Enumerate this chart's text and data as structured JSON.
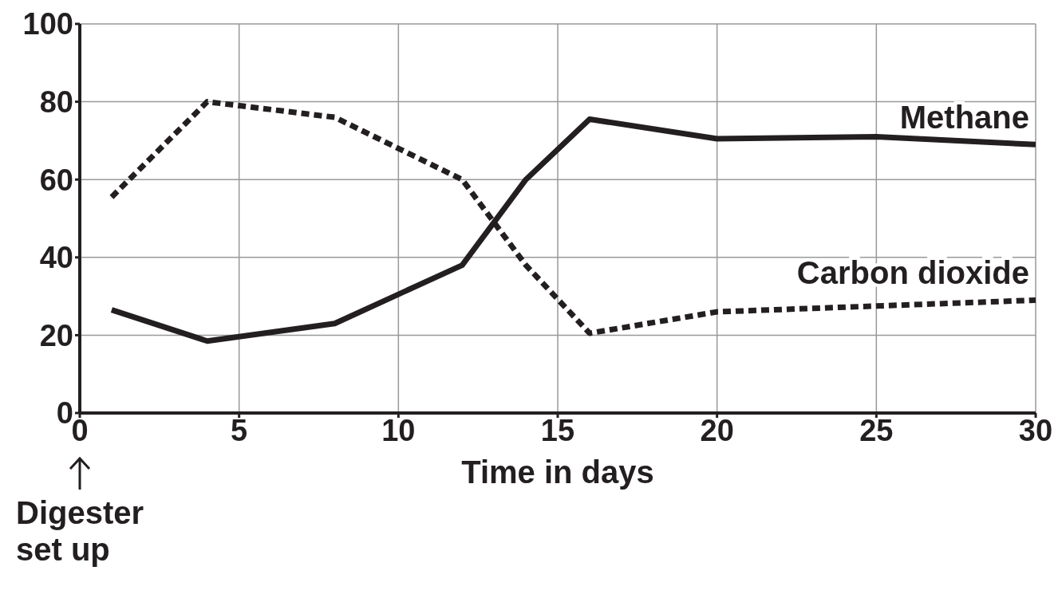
{
  "chart_data": {
    "type": "line",
    "xlabel": "Time in days",
    "xlim": [
      0,
      30
    ],
    "xticks": [
      0,
      5,
      10,
      15,
      20,
      25,
      30
    ],
    "ylim": [
      0,
      100
    ],
    "yticks": [
      0,
      20,
      40,
      60,
      80,
      100
    ],
    "grid": true,
    "marker": "none",
    "x": [
      1,
      4,
      8,
      12,
      14,
      16,
      20,
      25,
      30
    ],
    "series": [
      {
        "name": "Methane",
        "color": "#231f20",
        "line_style": "solid",
        "values": [
          26.5,
          18.5,
          23,
          38,
          60,
          75.5,
          70.5,
          71,
          69
        ]
      },
      {
        "name": "Carbon dioxide",
        "color": "#231f20",
        "line_style": "dashed",
        "values": [
          55.5,
          80,
          76,
          60,
          38,
          20.5,
          26,
          27.5,
          29
        ]
      }
    ],
    "annotations": [
      "Digester set up"
    ]
  }
}
